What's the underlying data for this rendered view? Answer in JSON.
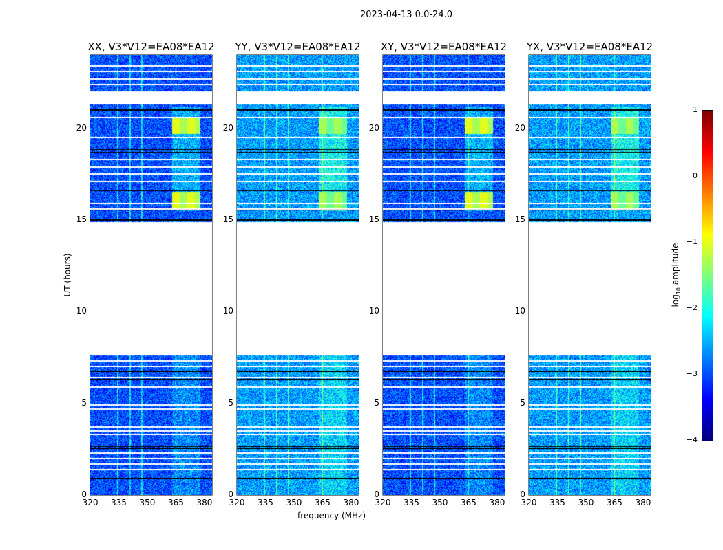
{
  "chart_data": {
    "type": "heatmap",
    "title": "2023-04-13 0.0-24.0",
    "xlabel": "frequency (MHz)",
    "ylabel": "UT (hours)",
    "xlim": [
      320,
      384
    ],
    "ylim": [
      0,
      24
    ],
    "xticks": [
      "320",
      "335",
      "350",
      "365",
      "380"
    ],
    "yticks": [
      "0",
      "5",
      "10",
      "15",
      "20"
    ],
    "panels": [
      {
        "title": "XX, V3*V12=EA08*EA12",
        "base_level": -3.0,
        "rfi_band_level": -1.0
      },
      {
        "title": "YY, V3*V12=EA08*EA12",
        "base_level": -2.6,
        "rfi_band_level": -1.3
      },
      {
        "title": "XY, V3*V12=EA08*EA12",
        "base_level": -3.0,
        "rfi_band_level": -1.0
      },
      {
        "title": "YX, V3*V12=EA08*EA12",
        "base_level": -2.6,
        "rfi_band_level": -1.3
      }
    ],
    "data_gaps_hours": [
      [
        7.6,
        14.9
      ],
      [
        21.3,
        22.0
      ]
    ],
    "rfi_band_MHz": [
      363,
      378
    ],
    "colorbar": {
      "label": "log10 amplitude",
      "range": [
        -4,
        1
      ],
      "ticks": [
        "1",
        "0",
        "−1",
        "−2",
        "−3",
        "−4"
      ],
      "colormap": "jet"
    }
  }
}
